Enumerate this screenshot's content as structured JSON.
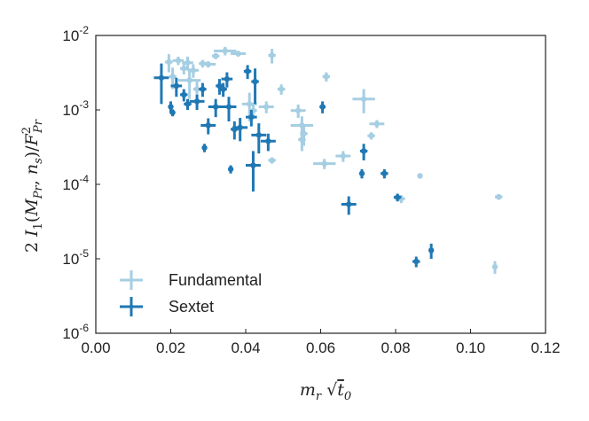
{
  "chart_data": {
    "type": "scatter",
    "title": "",
    "xlabel": "m_r √t_0",
    "ylabel": "2 I_1(M_Pr, n_s) / F_Pr^2",
    "xlim": [
      0.0,
      0.12
    ],
    "ylim_log10": [
      -6,
      -2
    ],
    "x_ticks": [
      "0.00",
      "0.02",
      "0.04",
      "0.06",
      "0.08",
      "0.10",
      "0.12"
    ],
    "y_ticks": [
      {
        "base": "10",
        "exp": "-6"
      },
      {
        "base": "10",
        "exp": "-5"
      },
      {
        "base": "10",
        "exp": "-4"
      },
      {
        "base": "10",
        "exp": "-3"
      },
      {
        "base": "10",
        "exp": "-2"
      }
    ],
    "legend_position": "lower-left",
    "series": [
      {
        "name": "Fundamental",
        "color": "#a6cee3",
        "points": [
          {
            "x": 0.0195,
            "y": 0.0044,
            "xerr": 0.001,
            "yerr": 0.0012
          },
          {
            "x": 0.0205,
            "y": 0.0028,
            "xerr": 0.001,
            "yerr": 0.0009
          },
          {
            "x": 0.022,
            "y": 0.0046,
            "xerr": 0.0015,
            "yerr": 0.0006
          },
          {
            "x": 0.0235,
            "y": 0.0036,
            "xerr": 0.001,
            "yerr": 0.0006
          },
          {
            "x": 0.0245,
            "y": 0.0043,
            "xerr": 0.0015,
            "yerr": 0.0009
          },
          {
            "x": 0.025,
            "y": 0.0025,
            "xerr": 0.003,
            "yerr": 0.0011
          },
          {
            "x": 0.026,
            "y": 0.0034,
            "xerr": 0.0015,
            "yerr": 0.0007
          },
          {
            "x": 0.027,
            "y": 0.0019,
            "xerr": 0.001,
            "yerr": 0.0005
          },
          {
            "x": 0.0285,
            "y": 0.0042,
            "xerr": 0.001,
            "yerr": 0.0005
          },
          {
            "x": 0.03,
            "y": 0.0041,
            "xerr": 0.002,
            "yerr": 0.0004
          },
          {
            "x": 0.032,
            "y": 0.0053,
            "xerr": 0.001,
            "yerr": 0.0005
          },
          {
            "x": 0.0345,
            "y": 0.0062,
            "xerr": 0.003,
            "yerr": 0.0008
          },
          {
            "x": 0.038,
            "y": 0.0057,
            "xerr": 0.002,
            "yerr": 0.0005
          },
          {
            "x": 0.041,
            "y": 0.0012,
            "xerr": 0.002,
            "yerr": 0.0005
          },
          {
            "x": 0.042,
            "y": 0.00098,
            "xerr": 0.001,
            "yerr": 0.0002
          },
          {
            "x": 0.047,
            "y": 0.0054,
            "xerr": 0.001,
            "yerr": 0.0012
          },
          {
            "x": 0.0455,
            "y": 0.0011,
            "xerr": 0.002,
            "yerr": 0.0002
          },
          {
            "x": 0.047,
            "y": 0.00021,
            "xerr": 0.001,
            "yerr": 2e-05
          },
          {
            "x": 0.0495,
            "y": 0.0019,
            "xerr": 0.001,
            "yerr": 0.0003
          },
          {
            "x": 0.054,
            "y": 0.00098,
            "xerr": 0.002,
            "yerr": 0.0002
          },
          {
            "x": 0.055,
            "y": 0.00062,
            "xerr": 0.003,
            "yerr": 0.0002
          },
          {
            "x": 0.0555,
            "y": 0.00048,
            "xerr": 0.001,
            "yerr": 0.00015
          },
          {
            "x": 0.055,
            "y": 0.0004,
            "xerr": 0.001,
            "yerr": 0.00012
          },
          {
            "x": 0.0615,
            "y": 0.0028,
            "xerr": 0.001,
            "yerr": 0.0004
          },
          {
            "x": 0.061,
            "y": 0.00019,
            "xerr": 0.003,
            "yerr": 3e-05
          },
          {
            "x": 0.066,
            "y": 0.00024,
            "xerr": 0.002,
            "yerr": 4e-05
          },
          {
            "x": 0.0715,
            "y": 0.0014,
            "xerr": 0.003,
            "yerr": 0.0005
          },
          {
            "x": 0.0735,
            "y": 0.00045,
            "xerr": 0.001,
            "yerr": 5e-05
          },
          {
            "x": 0.075,
            "y": 0.00065,
            "xerr": 0.002,
            "yerr": 8e-05
          },
          {
            "x": 0.0815,
            "y": 6.4e-05,
            "xerr": 0.001,
            "yerr": 8e-06
          },
          {
            "x": 0.0865,
            "y": 0.00013,
            "xerr": 0.0005,
            "yerr": 1e-05
          },
          {
            "x": 0.1075,
            "y": 6.8e-05,
            "xerr": 0.001,
            "yerr": 6e-06
          },
          {
            "x": 0.1065,
            "y": 7.8e-06,
            "xerr": 0.0003,
            "yerr": 1.5e-06
          }
        ]
      },
      {
        "name": "Sextet",
        "color": "#1f78b4",
        "points": [
          {
            "x": 0.0175,
            "y": 0.0027,
            "xerr": 0.002,
            "yerr": 0.0015
          },
          {
            "x": 0.02,
            "y": 0.0011,
            "xerr": 0.0005,
            "yerr": 0.0002
          },
          {
            "x": 0.0205,
            "y": 0.00092,
            "xerr": 0.0005,
            "yerr": 0.0001
          },
          {
            "x": 0.0215,
            "y": 0.0021,
            "xerr": 0.0015,
            "yerr": 0.0006
          },
          {
            "x": 0.0235,
            "y": 0.0016,
            "xerr": 0.001,
            "yerr": 0.0003
          },
          {
            "x": 0.0245,
            "y": 0.0012,
            "xerr": 0.001,
            "yerr": 0.0002
          },
          {
            "x": 0.027,
            "y": 0.0013,
            "xerr": 0.002,
            "yerr": 0.0003
          },
          {
            "x": 0.0285,
            "y": 0.0019,
            "xerr": 0.001,
            "yerr": 0.0004
          },
          {
            "x": 0.029,
            "y": 0.00031,
            "xerr": 0.0005,
            "yerr": 4e-05
          },
          {
            "x": 0.03,
            "y": 0.00062,
            "xerr": 0.002,
            "yerr": 0.00015
          },
          {
            "x": 0.032,
            "y": 0.0011,
            "xerr": 0.002,
            "yerr": 0.0003
          },
          {
            "x": 0.033,
            "y": 0.0021,
            "xerr": 0.001,
            "yerr": 0.0005
          },
          {
            "x": 0.034,
            "y": 0.0019,
            "xerr": 0.001,
            "yerr": 0.0004
          },
          {
            "x": 0.035,
            "y": 0.0026,
            "xerr": 0.0015,
            "yerr": 0.0006
          },
          {
            "x": 0.0355,
            "y": 0.0011,
            "xerr": 0.002,
            "yerr": 0.0004
          },
          {
            "x": 0.036,
            "y": 0.00016,
            "xerr": 0.0005,
            "yerr": 2e-05
          },
          {
            "x": 0.037,
            "y": 0.00055,
            "xerr": 0.001,
            "yerr": 0.00015
          },
          {
            "x": 0.0385,
            "y": 0.00058,
            "xerr": 0.002,
            "yerr": 0.0002
          },
          {
            "x": 0.0405,
            "y": 0.0033,
            "xerr": 0.001,
            "yerr": 0.0007
          },
          {
            "x": 0.0415,
            "y": 0.0008,
            "xerr": 0.0015,
            "yerr": 0.0002
          },
          {
            "x": 0.0425,
            "y": 0.0024,
            "xerr": 0.001,
            "yerr": 0.0012
          },
          {
            "x": 0.042,
            "y": 0.00018,
            "xerr": 0.002,
            "yerr": 0.0001
          },
          {
            "x": 0.0435,
            "y": 0.00046,
            "xerr": 0.002,
            "yerr": 0.0002
          },
          {
            "x": 0.046,
            "y": 0.00038,
            "xerr": 0.002,
            "yerr": 0.0001
          },
          {
            "x": 0.0605,
            "y": 0.0011,
            "xerr": 0.0008,
            "yerr": 0.0002
          },
          {
            "x": 0.071,
            "y": 0.00014,
            "xerr": 0.0005,
            "yerr": 2e-05
          },
          {
            "x": 0.0715,
            "y": 0.00028,
            "xerr": 0.001,
            "yerr": 7e-05
          },
          {
            "x": 0.0675,
            "y": 5.4e-05,
            "xerr": 0.002,
            "yerr": 1.5e-05
          },
          {
            "x": 0.077,
            "y": 0.00014,
            "xerr": 0.001,
            "yerr": 2e-05
          },
          {
            "x": 0.0805,
            "y": 6.7e-05,
            "xerr": 0.001,
            "yerr": 8e-06
          },
          {
            "x": 0.0855,
            "y": 9.2e-06,
            "xerr": 0.001,
            "yerr": 1.5e-06
          },
          {
            "x": 0.0895,
            "y": 1.3e-05,
            "xerr": 0.0005,
            "yerr": 3e-06
          }
        ]
      }
    ]
  }
}
